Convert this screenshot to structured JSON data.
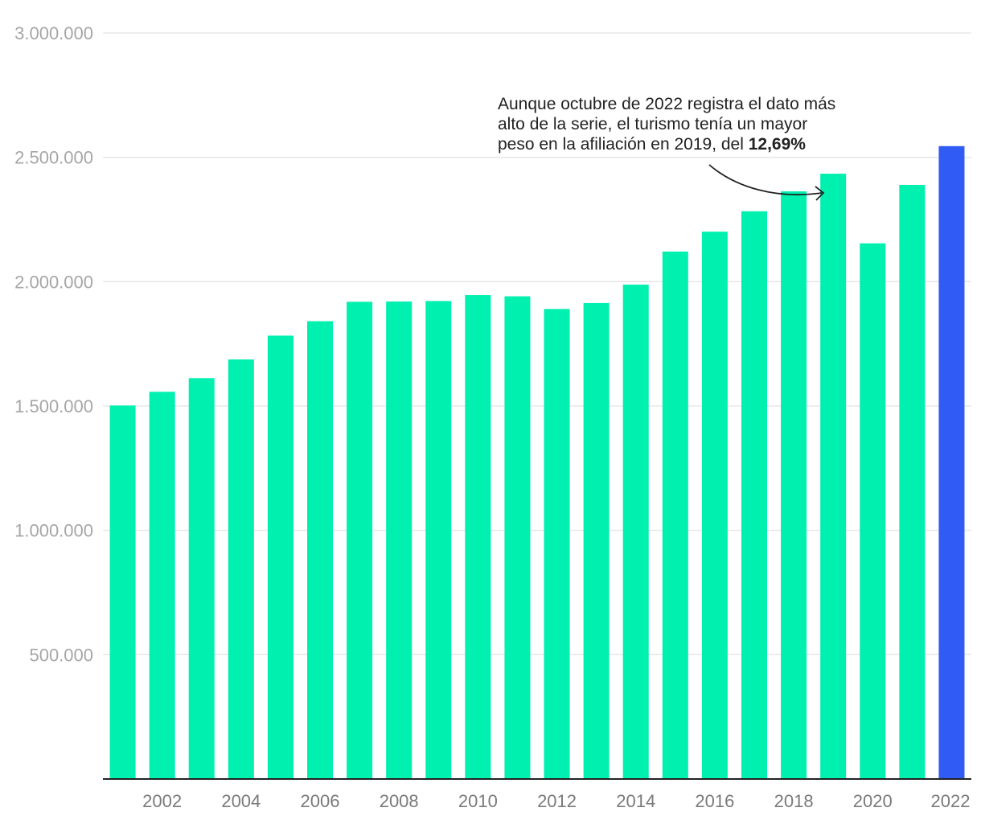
{
  "chart_data": {
    "type": "bar",
    "categories": [
      "2001",
      "2002",
      "2003",
      "2004",
      "2005",
      "2006",
      "2007",
      "2008",
      "2009",
      "2010",
      "2011",
      "2012",
      "2013",
      "2014",
      "2015",
      "2016",
      "2017",
      "2018",
      "2019",
      "2020",
      "2021",
      "2022"
    ],
    "values": [
      1502000,
      1557000,
      1612000,
      1687000,
      1783000,
      1841000,
      1919000,
      1920000,
      1922000,
      1946000,
      1941000,
      1890000,
      1914000,
      1988000,
      2121000,
      2201000,
      2283000,
      2363000,
      2434000,
      2154000,
      2389000,
      2545000
    ],
    "tick_labels_x": [
      "2002",
      "2004",
      "2006",
      "2008",
      "2010",
      "2012",
      "2014",
      "2016",
      "2018",
      "2020",
      "2022"
    ],
    "y_ticks": [
      500000,
      1000000,
      1500000,
      2000000,
      2500000,
      3000000
    ],
    "y_tick_labels": [
      "500.000",
      "1.000.000",
      "1.500.000",
      "2.000.000",
      "2.500.000",
      "3.000.000"
    ],
    "ylim": [
      0,
      3000000
    ],
    "grid": true,
    "colors": {
      "bar": "#00f0b0",
      "highlight": "#305cf5",
      "grid": "#e4e4e4",
      "axis": "#222222"
    },
    "highlight_category": "2022",
    "annotation": {
      "line1": "Aunque octubre de 2022 registra el dato más",
      "line2": "alto de la serie, el turismo tenía un mayor",
      "line3_prefix": "peso en la afiliación en 2019, del ",
      "line3_bold": "12,69%",
      "target_category": "2019"
    }
  }
}
